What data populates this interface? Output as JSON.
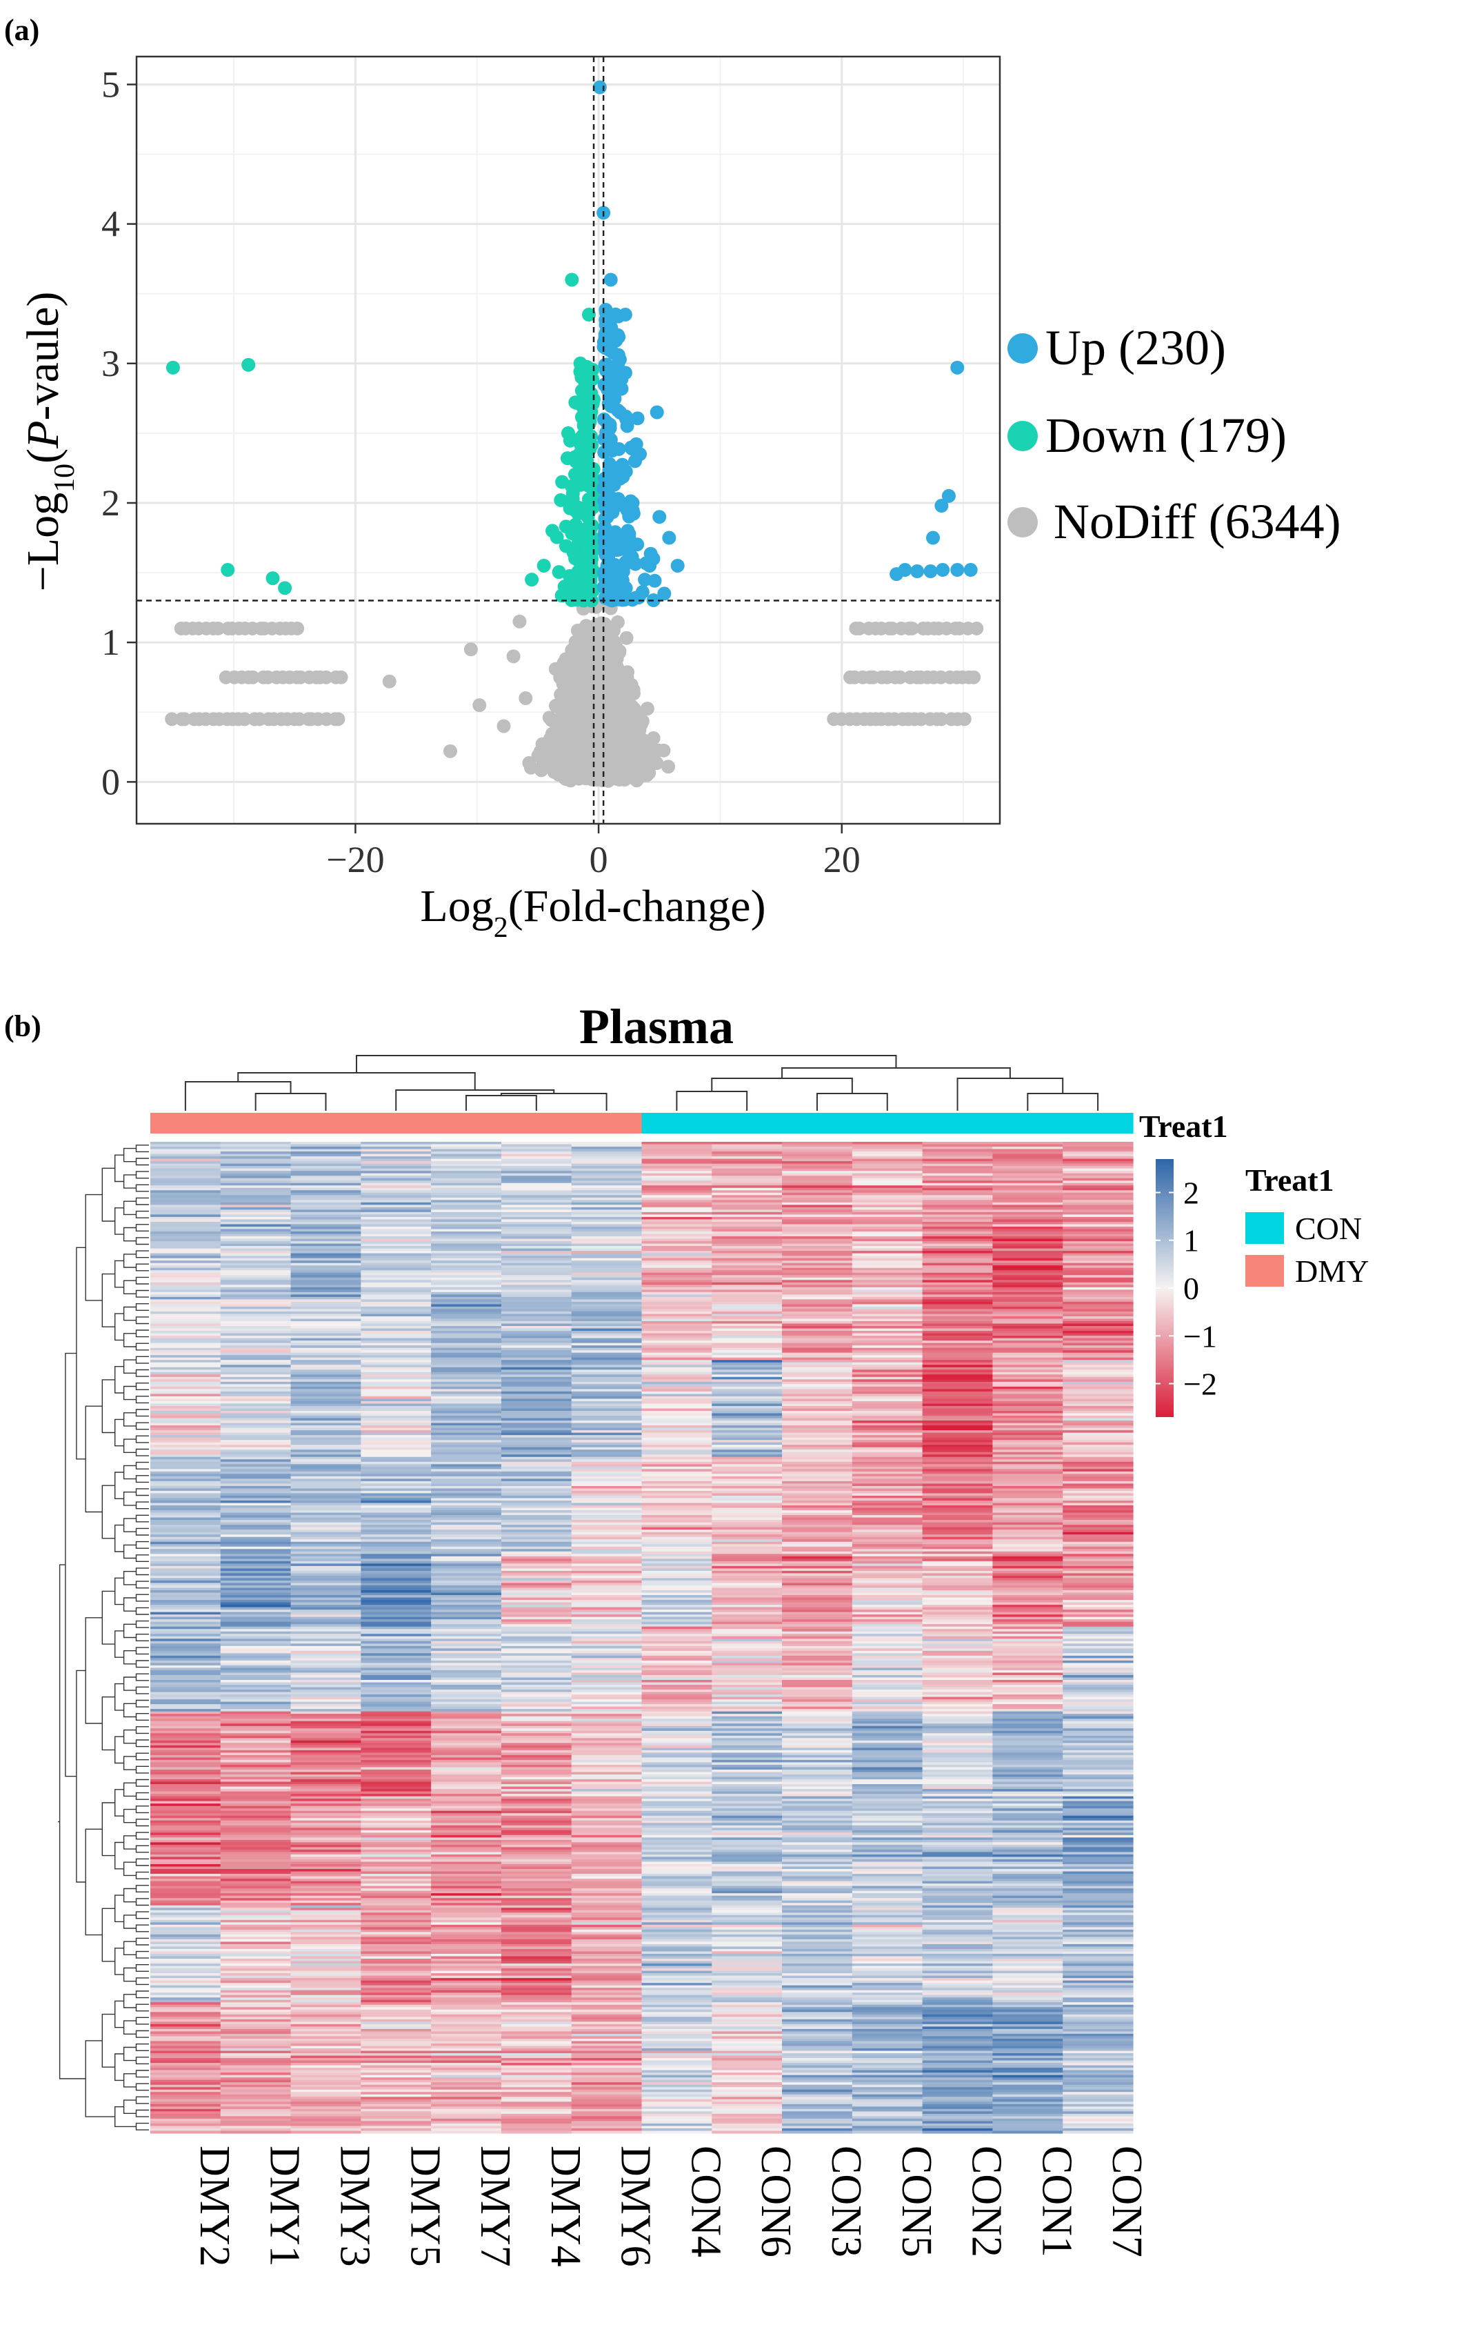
{
  "panels": {
    "a": "(a)",
    "b": "(b)"
  },
  "colors": {
    "up": "#31AADF",
    "down": "#19D3B2",
    "nodiff": "#BEBEBE",
    "con": "#00D4E0",
    "dmy": "#F8857A",
    "heat_high": "#2F66A8",
    "heat_mid": "#F5F2F1",
    "heat_low": "#D91E3A"
  },
  "chart_data": [
    {
      "type": "scatter",
      "panel": "(a)",
      "title": "",
      "xlabel": {
        "base": "Log",
        "sub": "2",
        "rest": "(Fold-change)"
      },
      "ylabel": {
        "minus": "−",
        "base": "Log",
        "sub": "10",
        "open": "(",
        "italic": "P",
        "rest": "-vaule)"
      },
      "xlim": [
        -38,
        33
      ],
      "ylim": [
        -0.3,
        5.2
      ],
      "x_ticks": [
        -20,
        0,
        20
      ],
      "x_tick_labels": [
        "−20",
        "0",
        "20"
      ],
      "y_ticks": [
        0,
        1,
        2,
        3,
        4,
        5
      ],
      "y_tick_labels": [
        "0",
        "1",
        "2",
        "3",
        "4",
        "5"
      ],
      "grid": true,
      "thresholds": {
        "x": [
          -0.4,
          0.4
        ],
        "y": 1.3
      },
      "legend_position": "right",
      "legend": [
        {
          "key": "up",
          "label": "Up (230)"
        },
        {
          "key": "down",
          "label": "Down (179)"
        },
        {
          "key": "nodiff",
          "label": "NoDiff (6344)"
        }
      ],
      "series": [
        {
          "key": "up",
          "highlight_points": [
            [
              0.1,
              4.98
            ],
            [
              0.4,
              4.08
            ],
            [
              29.5,
              2.97
            ],
            [
              28.8,
              2.05
            ],
            [
              28.2,
              1.98
            ],
            [
              27.5,
              1.75
            ],
            [
              25.2,
              1.52
            ],
            [
              26.2,
              1.51
            ],
            [
              27.3,
              1.51
            ],
            [
              28.3,
              1.52
            ],
            [
              29.5,
              1.52
            ],
            [
              30.6,
              1.52
            ],
            [
              24.5,
              1.49
            ],
            [
              4.8,
              2.65
            ],
            [
              6.5,
              1.55
            ],
            [
              5.4,
              1.35
            ],
            [
              3.4,
              2.35
            ],
            [
              2.2,
              3.35
            ],
            [
              1.6,
              3.0
            ],
            [
              2.4,
              1.8
            ],
            [
              4.2,
              1.55
            ],
            [
              5.0,
              1.9
            ],
            [
              1.0,
              3.6
            ],
            [
              0.8,
              3.3
            ],
            [
              1.2,
              2.2
            ],
            [
              3.0,
              2.3
            ],
            [
              2.8,
              2.0
            ],
            [
              4.5,
              1.6
            ],
            [
              5.8,
              1.75
            ],
            [
              3.8,
              1.45
            ]
          ]
        },
        {
          "key": "down",
          "highlight_points": [
            [
              -35.0,
              2.97
            ],
            [
              -28.8,
              2.99
            ],
            [
              -30.5,
              1.52
            ],
            [
              -26.8,
              1.46
            ],
            [
              -25.8,
              1.39
            ],
            [
              -2.2,
              3.6
            ],
            [
              -0.8,
              3.35
            ],
            [
              -1.5,
              3.0
            ],
            [
              -3.0,
              2.15
            ],
            [
              -4.5,
              1.55
            ],
            [
              -2.5,
              2.5
            ],
            [
              -3.8,
              1.8
            ],
            [
              -1.2,
              2.8
            ],
            [
              -2.8,
              1.4
            ],
            [
              -5.5,
              1.45
            ]
          ]
        },
        {
          "key": "nodiff",
          "highlight_points": [
            [
              -10.5,
              0.95
            ],
            [
              -12.2,
              0.22
            ],
            [
              -17.2,
              0.72
            ],
            [
              -9.8,
              0.55
            ],
            [
              -7.0,
              0.9
            ],
            [
              -6.5,
              1.15
            ],
            [
              -7.8,
              0.4
            ],
            [
              -6.0,
              0.6
            ]
          ]
        }
      ],
      "nodiff_bands": [
        {
          "y": 1.1,
          "from": -34.5,
          "to": -24.5
        },
        {
          "y": 0.75,
          "from": -30.5,
          "to": -21.0
        },
        {
          "y": 0.45,
          "from": -35.0,
          "to": -21.0
        },
        {
          "y": 1.1,
          "from": 21.0,
          "to": 31.0
        },
        {
          "y": 0.75,
          "from": 20.5,
          "to": 31.0
        },
        {
          "y": 0.45,
          "from": 19.5,
          "to": 30.0
        }
      ],
      "volcano_center": {
        "x_spread": 2.0,
        "y_max": 3.8,
        "threshold_y": 1.3
      }
    },
    {
      "type": "heatmap",
      "panel": "(b)",
      "title": "Plasma",
      "columns": [
        "DMY2",
        "DMY1",
        "DMY3",
        "DMY5",
        "DMY7",
        "DMY4",
        "DMY6",
        "CON4",
        "CON6",
        "CON3",
        "CON5",
        "CON2",
        "CON1",
        "CON7"
      ],
      "column_groups": [
        "DMY",
        "DMY",
        "DMY",
        "DMY",
        "DMY",
        "DMY",
        "DMY",
        "CON",
        "CON",
        "CON",
        "CON",
        "CON",
        "CON",
        "CON"
      ],
      "annotation_title": "Treat1",
      "legend_title": "Treat1",
      "legend_entries": [
        {
          "group": "CON",
          "label": "CON"
        },
        {
          "group": "DMY",
          "label": "DMY"
        }
      ],
      "color_scale": {
        "min": -2.7,
        "max": 2.7,
        "ticks": [
          2,
          1,
          0,
          -1,
          -2
        ],
        "tick_labels": [
          "2",
          "1",
          "0",
          "−1",
          "−2"
        ]
      },
      "n_rows": 409,
      "row_blocks": [
        {
          "rows": 35,
          "values": [
            0.8,
            0.9,
            1.0,
            0.6,
            0.7,
            0.6,
            0.8,
            -0.8,
            -0.9,
            -1.0,
            -0.7,
            -0.9,
            -1.3,
            -1.0
          ]
        },
        {
          "rows": 30,
          "values": [
            0.7,
            0.8,
            1.3,
            0.5,
            0.7,
            0.7,
            0.6,
            -0.6,
            -0.8,
            -0.9,
            -0.5,
            -1.4,
            -2.0,
            -1.2
          ]
        },
        {
          "rows": 25,
          "values": [
            0.2,
            0.5,
            0.6,
            0.5,
            1.2,
            1.1,
            1.2,
            -0.5,
            -0.3,
            -1.0,
            -0.6,
            -1.5,
            -1.4,
            -1.4
          ]
        },
        {
          "rows": 40,
          "values": [
            -0.1,
            0.4,
            1.0,
            0.0,
            1.0,
            1.4,
            0.8,
            -0.2,
            1.0,
            -0.5,
            -1.0,
            -2.1,
            -1.3,
            -0.5
          ]
        },
        {
          "rows": 40,
          "values": [
            1.0,
            1.3,
            0.9,
            1.1,
            1.0,
            0.9,
            0.1,
            -0.4,
            -0.4,
            -0.7,
            -1.0,
            -1.4,
            -0.8,
            -1.2
          ]
        },
        {
          "rows": 30,
          "values": [
            0.9,
            1.6,
            1.1,
            1.8,
            1.0,
            -0.4,
            -0.4,
            0.2,
            -0.8,
            -1.2,
            -0.6,
            -0.5,
            -1.4,
            -1.1
          ]
        },
        {
          "rows": 35,
          "values": [
            1.1,
            0.8,
            0.4,
            1.0,
            0.6,
            0.5,
            0.2,
            -0.6,
            -0.3,
            -0.9,
            0.1,
            -0.5,
            -0.7,
            0.6
          ]
        },
        {
          "rows": 35,
          "values": [
            -1.5,
            -1.2,
            -1.6,
            -1.7,
            -1.1,
            -1.0,
            -0.5,
            0.3,
            0.9,
            0.5,
            1.0,
            0.4,
            1.2,
            0.8
          ]
        },
        {
          "rows": 45,
          "values": [
            -1.6,
            -1.4,
            -1.2,
            -0.8,
            -1.3,
            -1.1,
            -0.9,
            0.6,
            0.8,
            0.6,
            0.7,
            0.9,
            1.0,
            1.3
          ]
        },
        {
          "rows": 40,
          "values": [
            0.5,
            -0.4,
            -0.3,
            -1.2,
            -1.0,
            -1.4,
            -0.8,
            0.7,
            0.3,
            0.9,
            0.5,
            0.8,
            0.4,
            1.0
          ]
        },
        {
          "rows": 54,
          "values": [
            -1.2,
            -1.0,
            -0.8,
            -0.7,
            -0.6,
            -0.7,
            -1.0,
            0.4,
            -0.3,
            1.0,
            1.0,
            1.6,
            1.7,
            0.9
          ]
        }
      ]
    }
  ]
}
